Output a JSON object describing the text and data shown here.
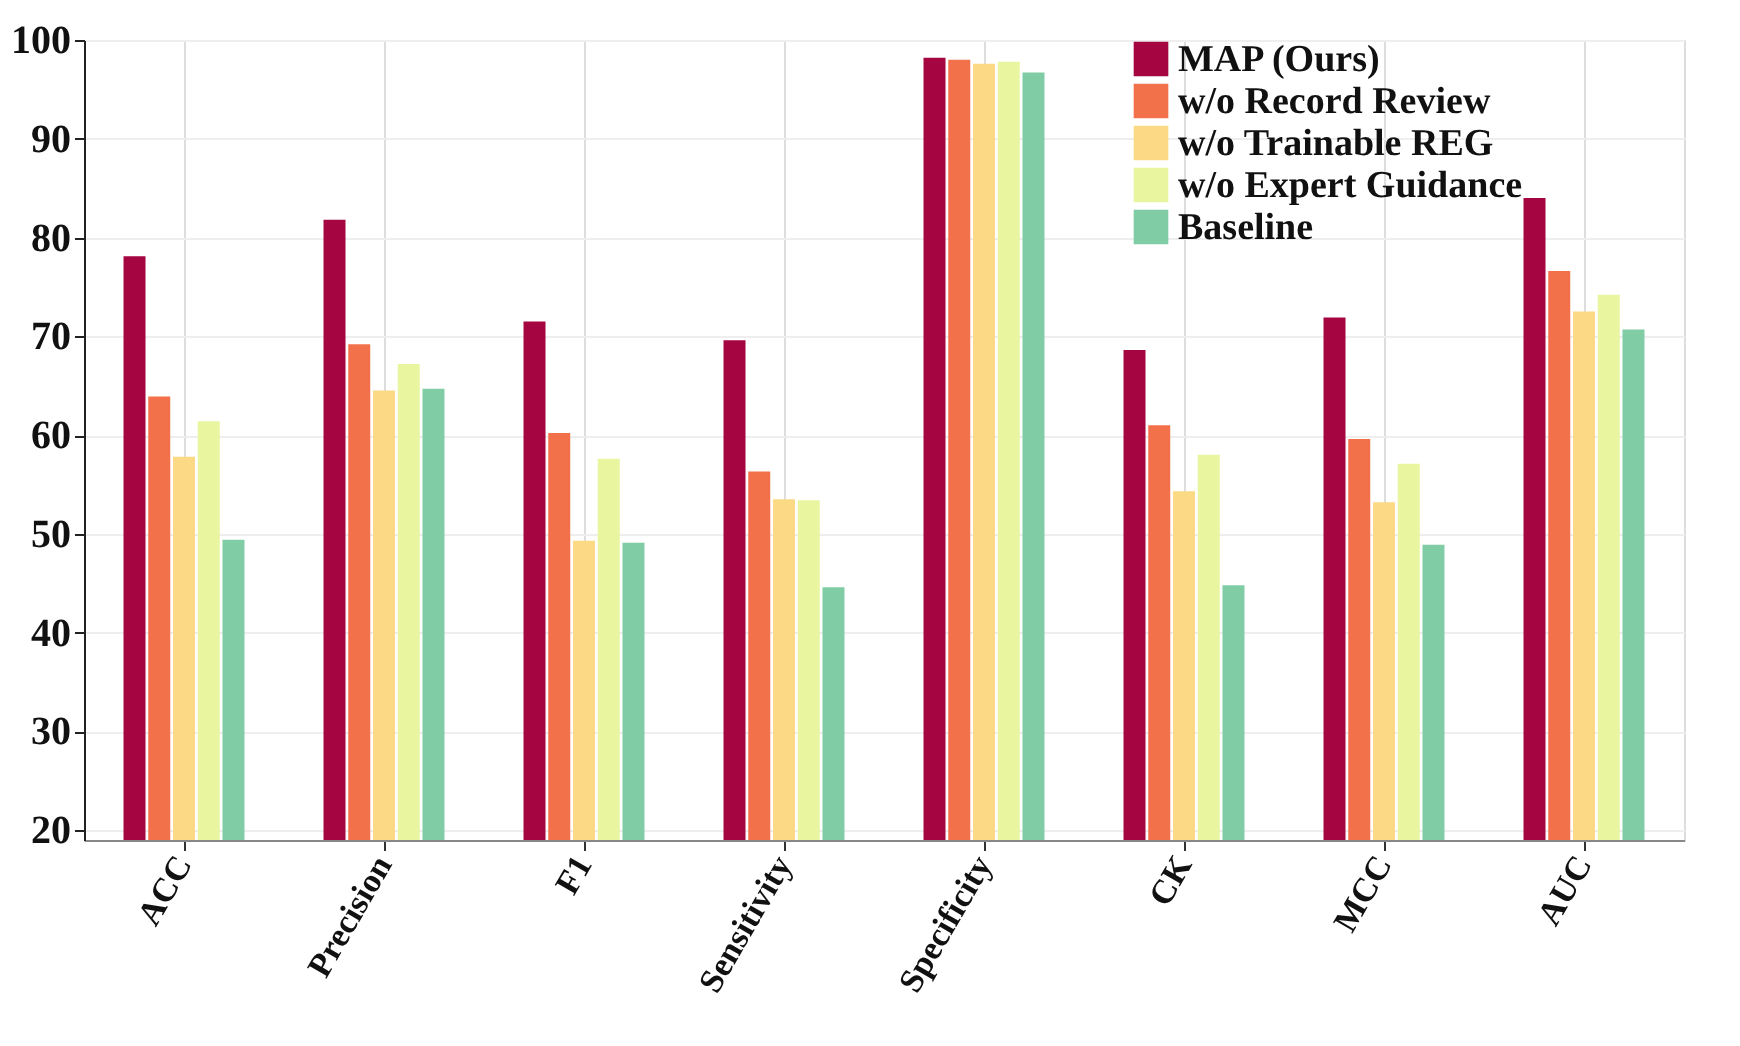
{
  "chart_data": {
    "type": "bar",
    "categories": [
      "ACC",
      "Precision",
      "F1",
      "Sensitivity",
      "Specificity",
      "CK",
      "MCC",
      "AUC"
    ],
    "series": [
      {
        "name": "MAP (Ours)",
        "color": "#a50541",
        "values": [
          78.1,
          81.8,
          71.5,
          69.6,
          98.2,
          68.6,
          71.9,
          84.0
        ]
      },
      {
        "name": "w/o Record Review",
        "color": "#f3714a",
        "values": [
          63.9,
          69.2,
          60.2,
          56.3,
          98.0,
          61.0,
          59.6,
          76.6
        ]
      },
      {
        "name": "w/o Trainable REG",
        "color": "#fcd985",
        "values": [
          57.8,
          64.5,
          49.3,
          53.5,
          97.6,
          54.3,
          53.2,
          72.5
        ]
      },
      {
        "name": "w/o Expert Guidance",
        "color": "#e9f59f",
        "values": [
          61.4,
          67.2,
          57.6,
          53.4,
          97.8,
          58.0,
          57.1,
          74.2
        ]
      },
      {
        "name": "Baseline",
        "color": "#80cca4",
        "values": [
          49.4,
          64.7,
          49.1,
          44.6,
          96.7,
          44.8,
          48.9,
          70.7
        ]
      }
    ],
    "ylim": [
      19,
      100
    ],
    "yticks": [
      20,
      30,
      40,
      50,
      60,
      70,
      80,
      90,
      100
    ],
    "grid": true,
    "legend": "top right"
  }
}
